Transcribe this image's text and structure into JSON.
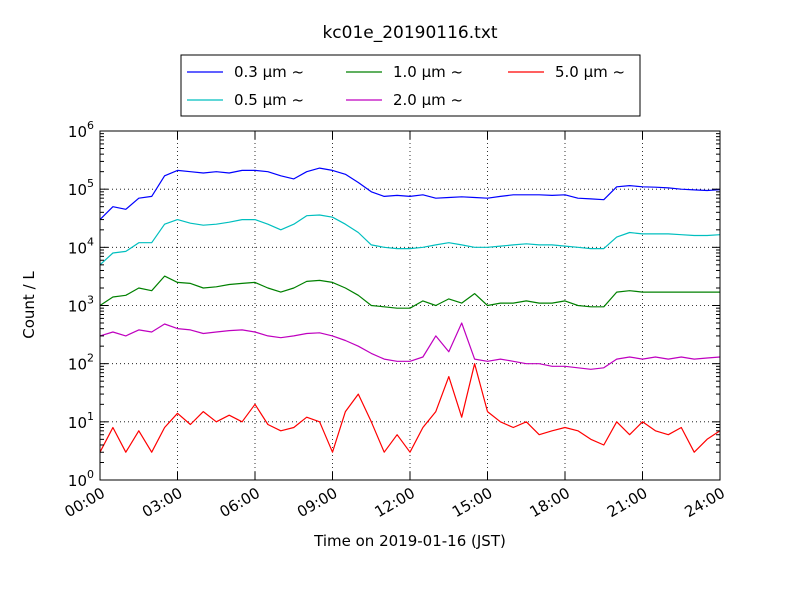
{
  "chart_data": {
    "type": "line",
    "title": "kc01e_20190116.txt",
    "xlabel": "Time on 2019-01-16 (JST)",
    "ylabel": "Count / L",
    "yscale": "log",
    "ylim": [
      1,
      1000000
    ],
    "xlim": [
      "00:00",
      "24:00"
    ],
    "grid": true,
    "legend_position": "top-center",
    "x_tick_labels": [
      "00:00",
      "03:00",
      "06:00",
      "09:00",
      "12:00",
      "15:00",
      "18:00",
      "21:00",
      "24:00"
    ],
    "y_tick_labels": [
      {
        "base": "10",
        "exp": "0"
      },
      {
        "base": "10",
        "exp": "1"
      },
      {
        "base": "10",
        "exp": "2"
      },
      {
        "base": "10",
        "exp": "3"
      },
      {
        "base": "10",
        "exp": "4"
      },
      {
        "base": "10",
        "exp": "5"
      },
      {
        "base": "10",
        "exp": "6"
      }
    ],
    "series": [
      {
        "name": "0.3 μm ~",
        "color": "#0000ff",
        "x": [
          "00:00",
          "00:30",
          "01:00",
          "01:30",
          "02:00",
          "02:30",
          "03:00",
          "03:30",
          "04:00",
          "04:30",
          "05:00",
          "05:30",
          "06:00",
          "06:30",
          "07:00",
          "07:30",
          "08:00",
          "08:30",
          "09:00",
          "09:30",
          "10:00",
          "10:30",
          "11:00",
          "11:30",
          "12:00",
          "12:30",
          "13:00",
          "13:30",
          "14:00",
          "14:30",
          "15:00",
          "15:30",
          "16:00",
          "16:30",
          "17:00",
          "17:30",
          "18:00",
          "18:30",
          "19:00",
          "19:30",
          "20:00",
          "20:30",
          "21:00",
          "21:30",
          "22:00",
          "22:30",
          "23:00",
          "23:30",
          "24:00"
        ],
        "values": [
          30000,
          50000,
          45000,
          70000,
          75000,
          170000,
          210000,
          200000,
          190000,
          200000,
          190000,
          210000,
          210000,
          200000,
          170000,
          150000,
          200000,
          230000,
          210000,
          180000,
          130000,
          90000,
          75000,
          78000,
          75000,
          80000,
          70000,
          72000,
          74000,
          72000,
          70000,
          75000,
          80000,
          80000,
          80000,
          78000,
          80000,
          70000,
          68000,
          66000,
          110000,
          115000,
          110000,
          108000,
          105000,
          100000,
          97000,
          95000,
          98000
        ]
      },
      {
        "name": "0.5 μm ~",
        "color": "#00bfbf",
        "x": [
          "00:00",
          "00:30",
          "01:00",
          "01:30",
          "02:00",
          "02:30",
          "03:00",
          "03:30",
          "04:00",
          "04:30",
          "05:00",
          "05:30",
          "06:00",
          "06:30",
          "07:00",
          "07:30",
          "08:00",
          "08:30",
          "09:00",
          "09:30",
          "10:00",
          "10:30",
          "11:00",
          "11:30",
          "12:00",
          "12:30",
          "13:00",
          "13:30",
          "14:00",
          "14:30",
          "15:00",
          "15:30",
          "16:00",
          "16:30",
          "17:00",
          "17:30",
          "18:00",
          "18:30",
          "19:00",
          "19:30",
          "20:00",
          "20:30",
          "21:00",
          "21:30",
          "22:00",
          "22:30",
          "23:00",
          "23:30",
          "24:00"
        ],
        "values": [
          5000,
          8000,
          8500,
          12000,
          12000,
          25000,
          30000,
          26000,
          24000,
          25000,
          27000,
          30000,
          30000,
          25000,
          20000,
          25000,
          35000,
          36000,
          33000,
          25000,
          18000,
          11000,
          10000,
          9500,
          9500,
          10000,
          11000,
          12000,
          11000,
          10000,
          10000,
          10500,
          11000,
          11500,
          11000,
          11000,
          10500,
          10000,
          9500,
          9500,
          15000,
          18000,
          17000,
          17000,
          17000,
          16500,
          16000,
          16000,
          16500
        ]
      },
      {
        "name": "1.0 μm ~",
        "color": "#008000",
        "x": [
          "00:00",
          "00:30",
          "01:00",
          "01:30",
          "02:00",
          "02:30",
          "03:00",
          "03:30",
          "04:00",
          "04:30",
          "05:00",
          "05:30",
          "06:00",
          "06:30",
          "07:00",
          "07:30",
          "08:00",
          "08:30",
          "09:00",
          "09:30",
          "10:00",
          "10:30",
          "11:00",
          "11:30",
          "12:00",
          "12:30",
          "13:00",
          "13:30",
          "14:00",
          "14:30",
          "15:00",
          "15:30",
          "16:00",
          "16:30",
          "17:00",
          "17:30",
          "18:00",
          "18:30",
          "19:00",
          "19:30",
          "20:00",
          "20:30",
          "21:00",
          "21:30",
          "22:00",
          "22:30",
          "23:00",
          "23:30",
          "24:00"
        ],
        "values": [
          1000,
          1400,
          1500,
          2000,
          1800,
          3200,
          2500,
          2400,
          2000,
          2100,
          2300,
          2400,
          2500,
          2000,
          1700,
          2000,
          2600,
          2700,
          2500,
          2000,
          1500,
          1000,
          950,
          900,
          900,
          1200,
          1000,
          1300,
          1100,
          1600,
          1000,
          1100,
          1100,
          1200,
          1100,
          1100,
          1200,
          1000,
          950,
          950,
          1700,
          1800,
          1700,
          1700,
          1700,
          1700,
          1700,
          1700,
          1700
        ]
      },
      {
        "name": "2.0 μm ~",
        "color": "#bf00bf",
        "x": [
          "00:00",
          "00:30",
          "01:00",
          "01:30",
          "02:00",
          "02:30",
          "03:00",
          "03:30",
          "04:00",
          "04:30",
          "05:00",
          "05:30",
          "06:00",
          "06:30",
          "07:00",
          "07:30",
          "08:00",
          "08:30",
          "09:00",
          "09:30",
          "10:00",
          "10:30",
          "11:00",
          "11:30",
          "12:00",
          "12:30",
          "13:00",
          "13:30",
          "14:00",
          "14:30",
          "15:00",
          "15:30",
          "16:00",
          "16:30",
          "17:00",
          "17:30",
          "18:00",
          "18:30",
          "19:00",
          "19:30",
          "20:00",
          "20:30",
          "21:00",
          "21:30",
          "22:00",
          "22:30",
          "23:00",
          "23:30",
          "24:00"
        ],
        "values": [
          300,
          350,
          300,
          380,
          350,
          480,
          400,
          380,
          330,
          350,
          370,
          380,
          350,
          300,
          280,
          300,
          330,
          340,
          300,
          250,
          200,
          150,
          120,
          110,
          110,
          130,
          300,
          160,
          500,
          120,
          110,
          120,
          110,
          100,
          100,
          90,
          90,
          85,
          80,
          85,
          120,
          130,
          120,
          130,
          120,
          130,
          120,
          125,
          130
        ]
      },
      {
        "name": "5.0 μm ~",
        "color": "#ff0000",
        "x": [
          "00:00",
          "00:30",
          "01:00",
          "01:30",
          "02:00",
          "02:30",
          "03:00",
          "03:30",
          "04:00",
          "04:30",
          "05:00",
          "05:30",
          "06:00",
          "06:30",
          "07:00",
          "07:30",
          "08:00",
          "08:30",
          "09:00",
          "09:30",
          "10:00",
          "10:30",
          "11:00",
          "11:30",
          "12:00",
          "12:30",
          "13:00",
          "13:30",
          "14:00",
          "14:30",
          "15:00",
          "15:30",
          "16:00",
          "16:30",
          "17:00",
          "17:30",
          "18:00",
          "18:30",
          "19:00",
          "19:30",
          "20:00",
          "20:30",
          "21:00",
          "21:30",
          "22:00",
          "22:30",
          "23:00",
          "23:30",
          "24:00"
        ],
        "values": [
          3,
          8,
          3,
          7,
          3,
          8,
          14,
          9,
          15,
          10,
          13,
          10,
          20,
          9,
          7,
          8,
          12,
          10,
          3,
          15,
          30,
          10,
          3,
          6,
          3,
          8,
          15,
          60,
          12,
          100,
          15,
          10,
          8,
          10,
          6,
          7,
          8,
          7,
          5,
          4,
          10,
          6,
          10,
          7,
          6,
          8,
          3,
          5,
          7
        ]
      }
    ]
  }
}
